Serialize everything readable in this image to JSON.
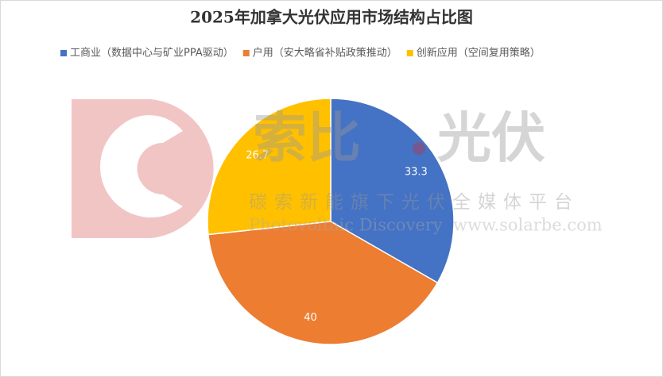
{
  "chart_data": {
    "type": "pie",
    "title": "2025年加拿大光伏应用市场结构占比图",
    "categories": [
      "工商业（数据中心与矿业PPA驱动）",
      "户用（安大略省补贴政策推动）",
      "创新应用（空间复用策略）"
    ],
    "values": [
      33.3,
      40,
      26.7
    ],
    "colors": [
      "#4472c4",
      "#ed7d31",
      "#ffc000"
    ],
    "legend": "top"
  },
  "watermark": {
    "brand_left": "索比",
    "brand_right": "光伏",
    "slogan": "碳索新能旗下光伏全媒体平台",
    "english": "Photovoltaic Discovery",
    "url": "www.solarbe.com"
  }
}
